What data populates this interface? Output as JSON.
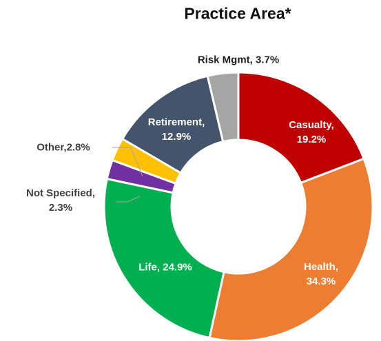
{
  "chart_data": {
    "type": "donut",
    "title": "Practice Area*",
    "values": [
      19.2,
      34.3,
      24.9,
      2.3,
      2.8,
      12.9,
      3.7
    ],
    "value_labels": [
      "Casualty, 19.2%",
      "Health, 34.3%",
      "Life, 24.9%",
      "Not Specified, 2.3%",
      "Other,2.8%",
      "Retirement, 12.9%",
      "Risk Mgmt, 3.7%"
    ],
    "colors": [
      "#c00000",
      "#ed7d31",
      "#00b050",
      "#7030a0",
      "#ffc000",
      "#44546a",
      "#a5a5a5"
    ]
  }
}
